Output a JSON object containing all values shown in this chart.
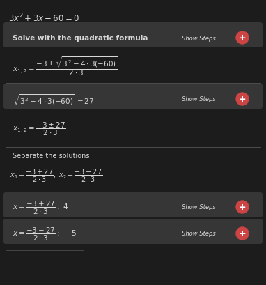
{
  "bg_color": "#1c1c1c",
  "panel_color": "#363636",
  "text_color": "#d8d8d8",
  "title_text": "$3x^2 + 3x - 60 = 0$",
  "section1_header": "Solve with the quadratic formula",
  "show_steps": "Show Steps",
  "plus_color": "#cc4444",
  "divider_color": "#555555"
}
